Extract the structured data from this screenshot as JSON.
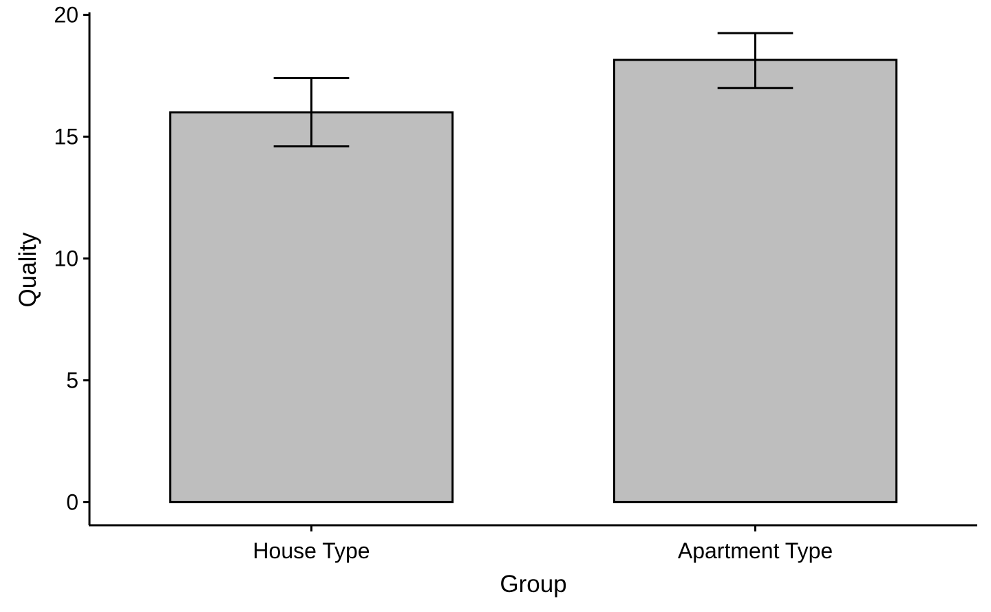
{
  "chart_data": {
    "type": "bar",
    "title": "",
    "xlabel": "Group",
    "ylabel": "Quality",
    "categories": [
      "House Type",
      "Apartment Type"
    ],
    "values": [
      16.0,
      18.15
    ],
    "error_bars": [
      {
        "low": 14.6,
        "high": 17.4
      },
      {
        "low": 17.0,
        "high": 19.25
      }
    ],
    "ylim": [
      -0.95,
      20.1
    ],
    "yticks": [
      0,
      5,
      10,
      15,
      20
    ],
    "grid": false,
    "legend": "none",
    "colors": {
      "bar_fill": "#bebebe",
      "bar_stroke": "#000000",
      "axis": "#000000",
      "error_bar": "#000000"
    }
  }
}
